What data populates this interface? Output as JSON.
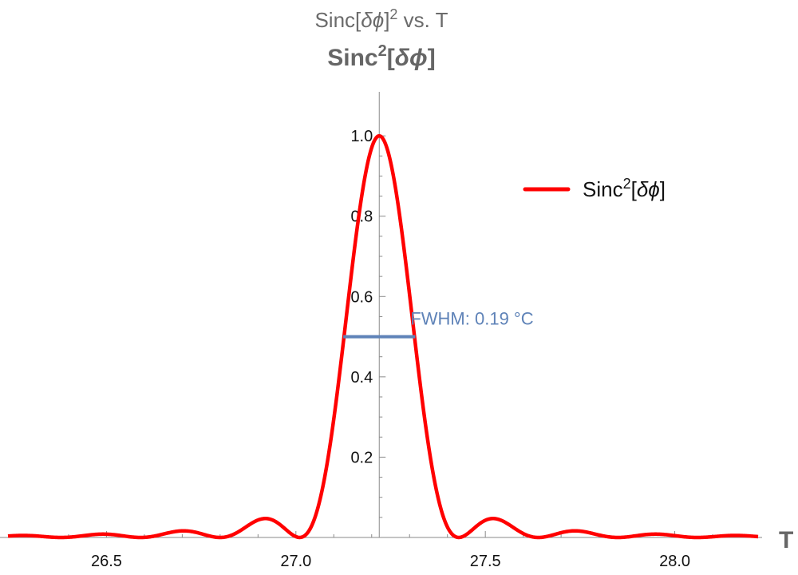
{
  "chart_data": {
    "type": "line",
    "title": "Sinc[δϕ]² vs. T",
    "title_parts": {
      "pre": "Sinc[",
      "greek": "δϕ",
      "post": "]",
      "sup": "2",
      "tail": " vs. T"
    },
    "subtitle": "Sinc²[δϕ]",
    "subtitle_parts": {
      "pre": "Sinc",
      "sup": "2",
      "mid": "[",
      "greek": "δϕ",
      "post": "]"
    },
    "xlabel": "T",
    "ylabel": "",
    "xlim": [
      26.24,
      28.22
    ],
    "ylim": [
      0,
      1.05
    ],
    "x_ticks": [
      "26.5",
      "27.0",
      "27.5",
      "28.0"
    ],
    "y_ticks": [
      "0.2",
      "0.4",
      "0.6",
      "0.8",
      "1.0"
    ],
    "y_axis_at_x": 27.22,
    "grid": false,
    "legend_position": "top-right",
    "series": [
      {
        "name": "Sinc²[δϕ]",
        "name_parts": {
          "pre": "Sinc",
          "sup": "2",
          "mid": "[",
          "greek": "δϕ",
          "post": "]"
        },
        "color": "#ff0000",
        "peak_x": 27.22,
        "first_zero_offset": 0.21,
        "x": [
          26.24,
          26.5,
          26.7,
          26.9,
          27.0,
          27.1,
          27.15,
          27.22,
          27.29,
          27.34,
          27.43,
          27.55,
          27.75,
          28.0,
          28.22
        ],
        "y": [
          0.002,
          0.005,
          0.013,
          0.047,
          0.001,
          0.33,
          0.65,
          1.0,
          0.65,
          0.33,
          0.0,
          0.047,
          0.013,
          0.005,
          0.001
        ]
      }
    ],
    "annotations": [
      {
        "label": "FWHM: 0.19 °C",
        "color": "#5f83b8",
        "y": 0.5,
        "x_start": 27.125,
        "x_end": 27.315
      }
    ]
  }
}
